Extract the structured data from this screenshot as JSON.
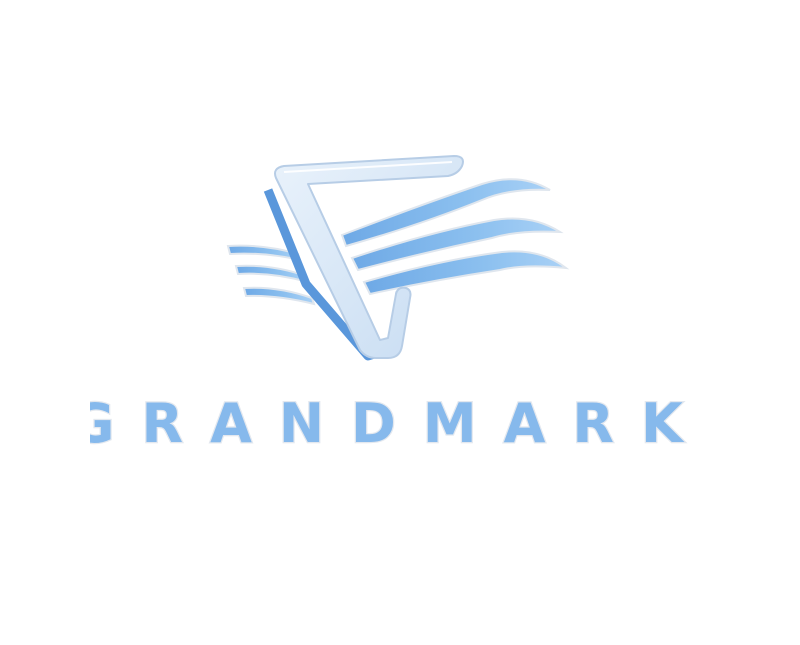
{
  "brand": {
    "name": "GRANDMARK",
    "icon": "triangle-wave-logo-icon",
    "colors": {
      "primary": "#7fb3e8",
      "deep": "#4f90d8",
      "light": "#cfe3f8",
      "outline": "#dfe6ee"
    }
  }
}
